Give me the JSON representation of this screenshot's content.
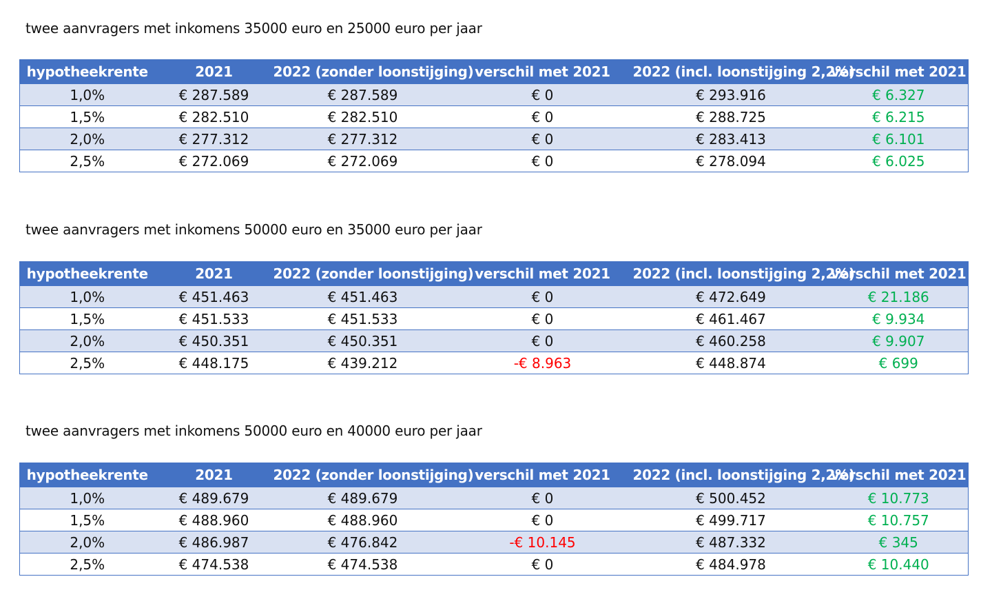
{
  "columns": [
    "hypotheekrente",
    "2021",
    "2022 (zonder loonstijging)",
    "verschil met 2021",
    "2022 (incl. loonstijging 2,2%)",
    "verschil met 2021"
  ],
  "colors": {
    "header": "#4472c4",
    "band": "#d9e1f2",
    "positive": "#00b050",
    "negative": "#ff0000"
  },
  "sections": [
    {
      "title": "twee aanvragers met inkomens 35000 euro en 25000 euro per jaar",
      "rows": [
        [
          "1,0%",
          "€ 287.589",
          "€ 287.589",
          "€ 0",
          "€ 293.916",
          "€ 6.327"
        ],
        [
          "1,5%",
          "€ 282.510",
          "€ 282.510",
          "€ 0",
          "€ 288.725",
          "€ 6.215"
        ],
        [
          "2,0%",
          "€ 277.312",
          "€ 277.312",
          "€ 0",
          "€ 283.413",
          "€ 6.101"
        ],
        [
          "2,5%",
          "€ 272.069",
          "€ 272.069",
          "€ 0",
          "€ 278.094",
          "€ 6.025"
        ]
      ]
    },
    {
      "title": "twee aanvragers met inkomens 50000 euro en 35000 euro per jaar",
      "rows": [
        [
          "1,0%",
          "€ 451.463",
          "€ 451.463",
          "€ 0",
          "€ 472.649",
          "€ 21.186"
        ],
        [
          "1,5%",
          "€ 451.533",
          "€ 451.533",
          "€ 0",
          "€ 461.467",
          "€ 9.934"
        ],
        [
          "2,0%",
          "€ 450.351",
          "€ 450.351",
          "€ 0",
          "€ 460.258",
          "€ 9.907"
        ],
        [
          "2,5%",
          "€ 448.175",
          "€ 439.212",
          "-€ 8.963",
          "€ 448.874",
          "€ 699"
        ]
      ]
    },
    {
      "title": "twee aanvragers met inkomens 50000 euro en 40000 euro per jaar",
      "rows": [
        [
          "1,0%",
          "€ 489.679",
          "€ 489.679",
          "€ 0",
          "€ 500.452",
          "€ 10.773"
        ],
        [
          "1,5%",
          "€ 488.960",
          "€ 488.960",
          "€ 0",
          "€ 499.717",
          "€ 10.757"
        ],
        [
          "2,0%",
          "€ 486.987",
          "€ 476.842",
          "-€ 10.145",
          "€ 487.332",
          "€ 345"
        ],
        [
          "2,5%",
          "€ 474.538",
          "€ 474.538",
          "€ 0",
          "€ 484.978",
          "€ 10.440"
        ]
      ]
    }
  ]
}
